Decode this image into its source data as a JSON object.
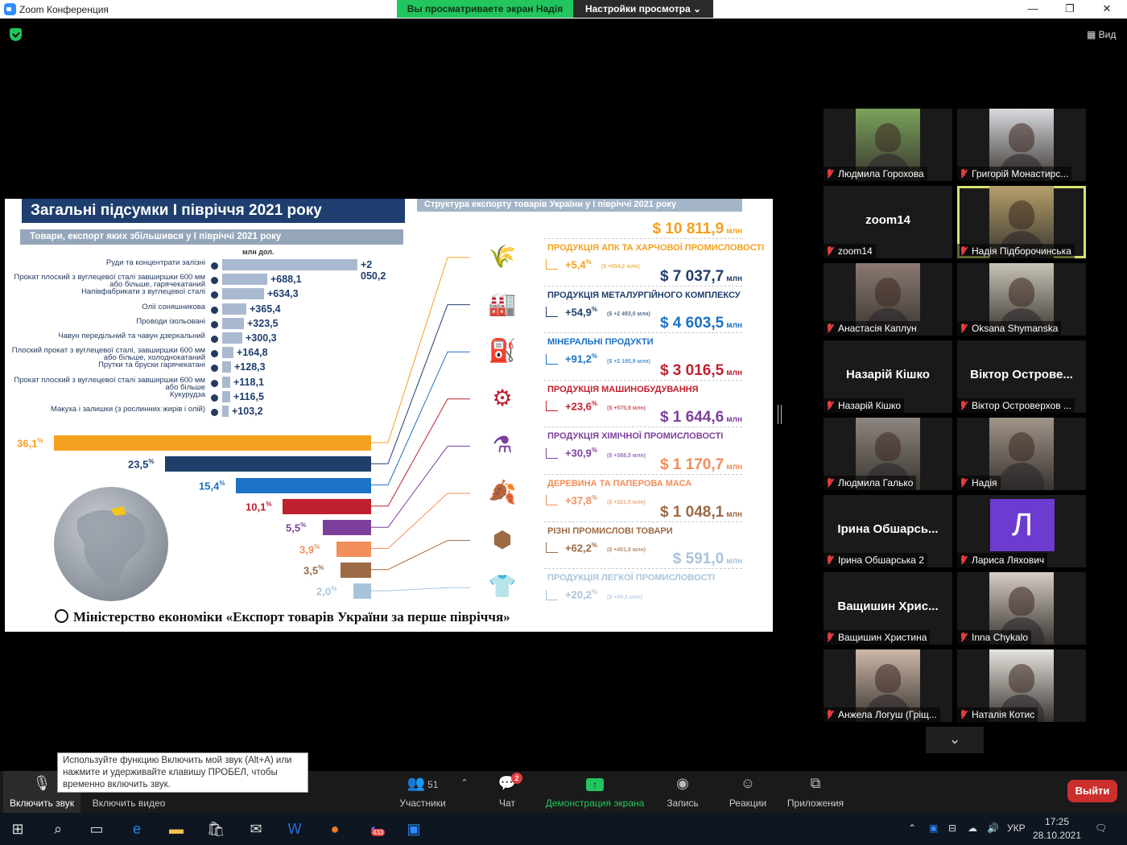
{
  "window": {
    "title": "Zoom Конференция",
    "min": "—",
    "max": "❐",
    "close": "✕"
  },
  "share_banner": {
    "viewing": "Вы просматриваете экран Надія",
    "view_options": "Настройки просмотра ⌄"
  },
  "view_button": {
    "label": "Вид"
  },
  "slide": {
    "title": "Загальні підсумки І півріччя 2021 року",
    "right_title": "Структура експорту товарів України у І півріччі 2021 року",
    "subtitle": "Товари, експорт яких збільшився у І півріччі 2021 року",
    "units": "млн дол.",
    "items": [
      {
        "label": "Руди та концентрати залізні",
        "value": "+2 050,2",
        "amount": 2050.2
      },
      {
        "label": "Прокат плоский з вуглецевої сталі завширшки 600 мм або більше, гарячекатаний",
        "value": "+688,1",
        "amount": 688.1
      },
      {
        "label": "Напівфабрикати з вуглецевої сталі",
        "value": "+634,3",
        "amount": 634.3
      },
      {
        "label": "Олії соняшникова",
        "value": "+365,4",
        "amount": 365.4
      },
      {
        "label": "Проводи ізольовані",
        "value": "+323,5",
        "amount": 323.5
      },
      {
        "label": "Чавун передільний та чавун дзеркальний",
        "value": "+300,3",
        "amount": 300.3
      },
      {
        "label": "Плоский прокат з вуглецевої сталі, завширшки 600 мм або більше, холоднокатаний",
        "value": "+164,8",
        "amount": 164.8
      },
      {
        "label": "Прутки та бруски гарячекатані",
        "value": "+128,3",
        "amount": 128.3
      },
      {
        "label": "Прокат плоский з вуглецевої сталі завширшки 600 мм або більше",
        "value": "+118,1",
        "amount": 118.1
      },
      {
        "label": "Кукурудза",
        "value": "+116,5",
        "amount": 116.5
      },
      {
        "label": "Макуха і залишки (з рослинних жирів і олій)",
        "value": "+103,2",
        "amount": 103.2
      }
    ],
    "shares": [
      {
        "pct": "36,1",
        "value": 36.1,
        "color": "#f5a01f"
      },
      {
        "pct": "23,5",
        "value": 23.5,
        "color": "#1f3e6b"
      },
      {
        "pct": "15,4",
        "value": 15.4,
        "color": "#1c72c4"
      },
      {
        "pct": "10,1",
        "value": 10.1,
        "color": "#c0202e"
      },
      {
        "pct": "5,5",
        "value": 5.5,
        "color": "#7c3f9c"
      },
      {
        "pct": "3,9",
        "value": 3.9,
        "color": "#f28e5a"
      },
      {
        "pct": "3,5",
        "value": 3.5,
        "color": "#9c6a45"
      },
      {
        "pct": "2,0",
        "value": 2.0,
        "color": "#a8c4dc"
      }
    ],
    "sectors": [
      {
        "amount": "$ 10 811,9",
        "unit": "млн",
        "name": "ПРОДУКЦІЯ АПК ТА ХАРЧОВОЇ ПРОМИСЛОВОСТІ",
        "growth": "+5,4",
        "growth_abs": "($ +554,2 млн)",
        "color": "#f5a01f",
        "icon": "wheat-cow-icon",
        "glyph": "🌾"
      },
      {
        "amount": "$ 7 037,7",
        "unit": "млн",
        "name": "ПРОДУКЦІЯ МЕТАЛУРГІЙНОГО КОМПЛЕКСУ",
        "growth": "+54,9",
        "growth_abs": "($ +2 493,0 млн)",
        "color": "#1f3e6b",
        "icon": "factory-icon",
        "glyph": "🏭"
      },
      {
        "amount": "$ 4 603,5",
        "unit": "млн",
        "name": "МІНЕРАЛЬНІ ПРОДУКТИ",
        "growth": "+91,2",
        "growth_abs": "($ +2 195,9 млн)",
        "color": "#1c72c4",
        "icon": "oil-rig-icon",
        "glyph": "⛽"
      },
      {
        "amount": "$ 3 016,5",
        "unit": "млн",
        "name": "ПРОДУКЦІЯ МАШИНОБУДУВАННЯ",
        "growth": "+23,6",
        "growth_abs": "($ +575,9 млн)",
        "color": "#c0202e",
        "icon": "gear-belt-icon",
        "glyph": "⚙"
      },
      {
        "amount": "$ 1 644,6",
        "unit": "млн",
        "name": "ПРОДУКЦІЯ ХІМІЧНОЇ ПРОМИСЛОВОСТІ",
        "growth": "+30,9",
        "growth_abs": "($ +388,5 млн)",
        "color": "#7c3f9c",
        "icon": "flask-icon",
        "glyph": "⚗"
      },
      {
        "amount": "$ 1 170,7",
        "unit": "млн",
        "name": "ДЕРЕВИНА ТА ПАПЕРОВА МАСА",
        "growth": "+37,8",
        "growth_abs": "($ +321,0 млн)",
        "color": "#f28e5a",
        "icon": "leaf-icon",
        "glyph": "🍂"
      },
      {
        "amount": "$ 1 048,1",
        "unit": "млн",
        "name": "РІЗНІ ПРОМИСЛОВІ ТОВАРИ",
        "growth": "+62,2",
        "growth_abs": "($ +401,9 млн)",
        "color": "#9c6a45",
        "icon": "hex-nut-icon",
        "glyph": "⬢"
      },
      {
        "amount": "$ 591,0",
        "unit": "млн",
        "name": "ПРОДУКЦІЯ ЛЕГКОЇ ПРОМИСЛОВОСТІ",
        "growth": "+20,2",
        "growth_abs": "($ +99,3 млн)",
        "color": "#a8c4dc",
        "icon": "tshirt-icon",
        "glyph": "👕"
      }
    ],
    "caption": "Міністерство економіки «Експорт товарів України за перше півріччя»"
  },
  "participants": [
    {
      "name": "Людмила Горохова",
      "type": "photo",
      "tone": "#7aa35a"
    },
    {
      "name": "Григорій Монастирс...",
      "type": "photo",
      "tone": "#d8dadf"
    },
    {
      "name": "zoom14",
      "type": "text",
      "big": "zoom14"
    },
    {
      "name": "Надія Підборочинська",
      "type": "photo",
      "tone": "#b5a06a",
      "active": true
    },
    {
      "name": "Анастасія Каплун",
      "type": "photo",
      "tone": "#8a7a72"
    },
    {
      "name": "Oksana Shymanska",
      "type": "photo",
      "tone": "#c8c3b6"
    },
    {
      "name": "Назарій Кішко",
      "type": "text",
      "big": "Назарій Кішко"
    },
    {
      "name": "Віктор Островерхов ...",
      "type": "text",
      "big": "Віктор  Острове..."
    },
    {
      "name": "Людмила Галько",
      "type": "photo",
      "tone": "#8d8680"
    },
    {
      "name": "Надія",
      "type": "photo",
      "tone": "#a09489"
    },
    {
      "name": "Ірина Обшарська 2",
      "type": "text",
      "big": "Ірина  Обшарсь..."
    },
    {
      "name": "Лариса Ляхович",
      "type": "avatar",
      "letter": "Л"
    },
    {
      "name": "Ващишин Христина",
      "type": "text",
      "big": "Ващишин  Хрис..."
    },
    {
      "name": "Inna Chykalo",
      "type": "photo",
      "tone": "#d6cdc5"
    },
    {
      "name": "Анжела Логуш (Гріщ...",
      "type": "photo",
      "tone": "#cdb8a9"
    },
    {
      "name": "Наталія Котис",
      "type": "photo",
      "tone": "#e7e5df"
    }
  ],
  "more_participants": "⌄",
  "tooltip": "Используйте функцию Включить мой звук (Alt+A) или нажмите и удерживайте клавишу ПРОБЕЛ, чтобы временно включить звук.",
  "toolbar": {
    "unmute": "Включить звук",
    "video": "Включить видео",
    "participants": "Участники",
    "participants_count": "51",
    "chat": "Чат",
    "chat_badge": "2",
    "share": "Демонстрация экрана",
    "record": "Запись",
    "reactions": "Реакции",
    "apps": "Приложения",
    "leave": "Выйти"
  },
  "taskbar": {
    "lang": "УКР",
    "time": "17:25",
    "date": "28.10.2021",
    "viber_badge": "433"
  }
}
